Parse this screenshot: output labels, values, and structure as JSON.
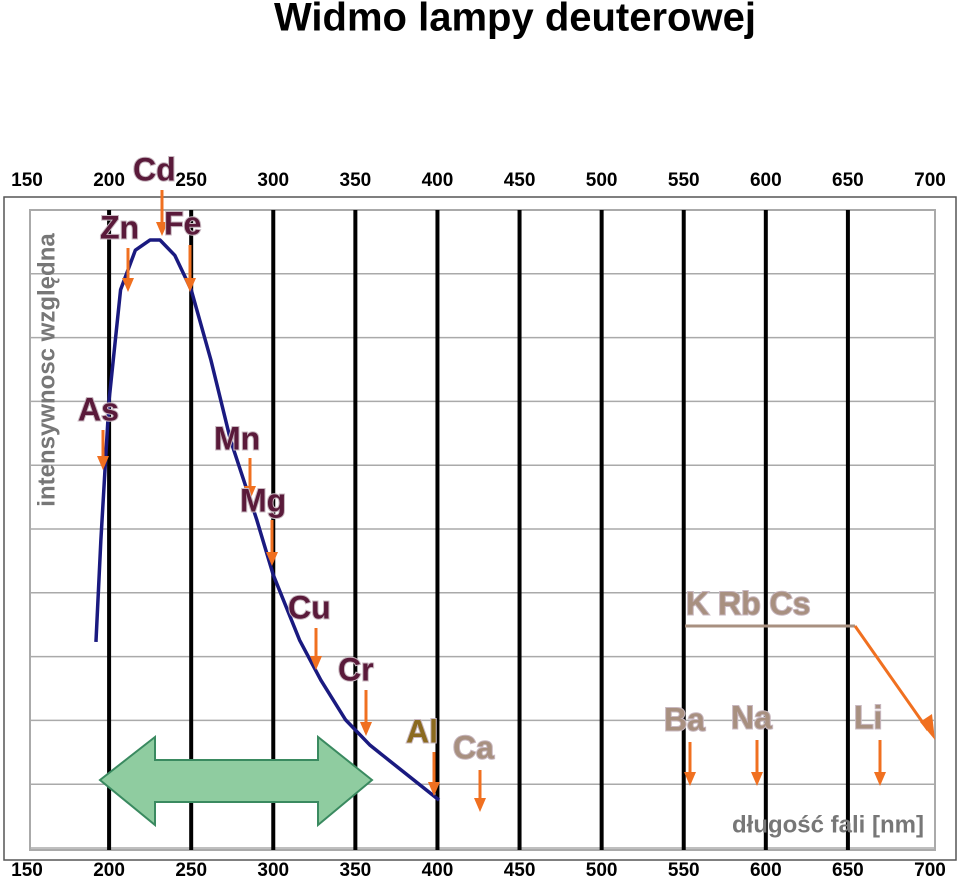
{
  "chart_data": {
    "type": "line",
    "title": "Widmo lampy deuterowej",
    "x_label": "długość fali [nm]",
    "y_label": "intensywnosc względna",
    "xlim": [
      150,
      700
    ],
    "xticks": [
      150,
      200,
      250,
      300,
      350,
      400,
      450,
      500,
      550,
      600,
      650,
      700
    ],
    "ylim": [
      0,
      10
    ],
    "grid": true,
    "series": [
      {
        "color": "#1a1a80",
        "x": [
          192,
          195,
          200,
          207,
          216,
          225,
          231,
          240,
          250,
          262,
          274,
          290,
          300,
          316,
          329,
          344,
          359,
          378,
          401
        ],
        "values": [
          3.23,
          4.83,
          7.02,
          8.75,
          9.37,
          9.53,
          9.53,
          9.29,
          8.75,
          7.65,
          6.39,
          5.14,
          4.28,
          3.26,
          2.63,
          2.01,
          1.61,
          1.22,
          0.75
        ]
      }
    ],
    "annotations": [
      "As",
      "Zn",
      "Cd",
      "Fe",
      "Mn",
      "Mg",
      "Cu",
      "Cr",
      "Al",
      "Ca",
      "Ba",
      "Na",
      "Li",
      "K  Rb  Cs"
    ]
  }
}
